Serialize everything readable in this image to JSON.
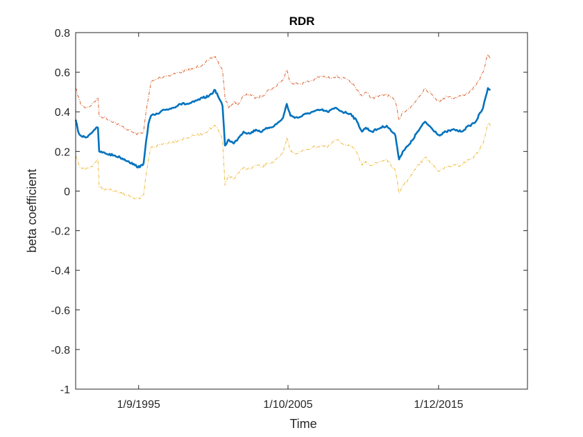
{
  "chart_data": {
    "type": "line",
    "title": "RDR",
    "xlabel": "Time",
    "ylabel": "beta coefficient",
    "ylim": [
      -1,
      0.8
    ],
    "xlim": [
      "1991-06-01",
      "2021-12-01"
    ],
    "y_ticks": [
      "0.8",
      "0.6",
      "0.4",
      "0.2",
      "0",
      "-0.2",
      "-0.4",
      "-0.6",
      "-0.8",
      "-1"
    ],
    "x_ticks": [
      {
        "date": "1995-09-01",
        "label": "1/9/1995"
      },
      {
        "date": "2005-10-01",
        "label": "1/10/2005"
      },
      {
        "date": "2015-12-01",
        "label": "1/12/2015"
      }
    ],
    "grid": false,
    "legend": "none",
    "series": [
      {
        "role": "upper",
        "color": "#D95319",
        "style": "dash-dot",
        "points": [
          [
            "1991-06-01",
            0.52
          ],
          [
            "1991-10-01",
            0.44
          ],
          [
            "1992-02-01",
            0.42
          ],
          [
            "1992-06-01",
            0.43
          ],
          [
            "1992-09-01",
            0.45
          ],
          [
            "1992-12-01",
            0.47
          ],
          [
            "1993-01-01",
            0.38
          ],
          [
            "1993-06-01",
            0.37
          ],
          [
            "1994-01-01",
            0.35
          ],
          [
            "1994-06-01",
            0.33
          ],
          [
            "1995-01-01",
            0.31
          ],
          [
            "1995-06-01",
            0.29
          ],
          [
            "1995-10-01",
            0.29
          ],
          [
            "1996-01-01",
            0.3
          ],
          [
            "1996-03-01",
            0.4
          ],
          [
            "1996-05-01",
            0.47
          ],
          [
            "1996-07-01",
            0.55
          ],
          [
            "1997-01-01",
            0.57
          ],
          [
            "1997-06-01",
            0.58
          ],
          [
            "1998-01-01",
            0.59
          ],
          [
            "1998-06-01",
            0.6
          ],
          [
            "1999-01-01",
            0.61
          ],
          [
            "1999-06-01",
            0.62
          ],
          [
            "2000-01-01",
            0.64
          ],
          [
            "2000-06-01",
            0.66
          ],
          [
            "2000-11-01",
            0.68
          ],
          [
            "2001-02-01",
            0.64
          ],
          [
            "2001-05-01",
            0.61
          ],
          [
            "2001-07-01",
            0.47
          ],
          [
            "2001-10-01",
            0.42
          ],
          [
            "2002-02-01",
            0.45
          ],
          [
            "2002-06-01",
            0.44
          ],
          [
            "2002-10-01",
            0.48
          ],
          [
            "2003-03-01",
            0.49
          ],
          [
            "2003-08-01",
            0.47
          ],
          [
            "2004-01-01",
            0.48
          ],
          [
            "2004-06-01",
            0.51
          ],
          [
            "2004-11-01",
            0.52
          ],
          [
            "2005-03-01",
            0.55
          ],
          [
            "2005-06-01",
            0.56
          ],
          [
            "2005-09-01",
            0.61
          ],
          [
            "2005-12-01",
            0.55
          ],
          [
            "2006-06-01",
            0.54
          ],
          [
            "2007-01-01",
            0.55
          ],
          [
            "2007-06-01",
            0.56
          ],
          [
            "2008-01-01",
            0.58
          ],
          [
            "2008-06-01",
            0.57
          ],
          [
            "2009-01-01",
            0.58
          ],
          [
            "2009-06-01",
            0.57
          ],
          [
            "2010-01-01",
            0.55
          ],
          [
            "2010-06-01",
            0.51
          ],
          [
            "2010-10-01",
            0.48
          ],
          [
            "2011-01-01",
            0.5
          ],
          [
            "2011-06-01",
            0.47
          ],
          [
            "2012-01-01",
            0.48
          ],
          [
            "2012-06-01",
            0.49
          ],
          [
            "2013-01-01",
            0.45
          ],
          [
            "2013-04-01",
            0.36
          ],
          [
            "2013-07-01",
            0.4
          ],
          [
            "2014-01-01",
            0.42
          ],
          [
            "2014-06-01",
            0.46
          ],
          [
            "2015-01-01",
            0.52
          ],
          [
            "2015-06-01",
            0.49
          ],
          [
            "2016-01-01",
            0.45
          ],
          [
            "2016-06-01",
            0.48
          ],
          [
            "2017-01-01",
            0.47
          ],
          [
            "2017-06-01",
            0.48
          ],
          [
            "2018-01-01",
            0.5
          ],
          [
            "2018-06-01",
            0.53
          ],
          [
            "2018-12-01",
            0.6
          ],
          [
            "2019-04-01",
            0.69
          ],
          [
            "2019-06-01",
            0.67
          ]
        ]
      },
      {
        "role": "estimate",
        "color": "#0072BD",
        "style": "solid",
        "points": [
          [
            "1991-06-01",
            0.36
          ],
          [
            "1991-08-01",
            0.3
          ],
          [
            "1991-10-01",
            0.28
          ],
          [
            "1992-02-01",
            0.27
          ],
          [
            "1992-06-01",
            0.29
          ],
          [
            "1992-09-01",
            0.31
          ],
          [
            "1992-12-01",
            0.32
          ],
          [
            "1993-01-01",
            0.2
          ],
          [
            "1993-06-01",
            0.19
          ],
          [
            "1994-01-01",
            0.18
          ],
          [
            "1994-06-01",
            0.17
          ],
          [
            "1995-01-01",
            0.15
          ],
          [
            "1995-06-01",
            0.13
          ],
          [
            "1995-10-01",
            0.12
          ],
          [
            "1996-01-01",
            0.14
          ],
          [
            "1996-03-01",
            0.25
          ],
          [
            "1996-05-01",
            0.34
          ],
          [
            "1996-07-01",
            0.38
          ],
          [
            "1997-01-01",
            0.39
          ],
          [
            "1997-06-01",
            0.41
          ],
          [
            "1998-01-01",
            0.42
          ],
          [
            "1998-06-01",
            0.44
          ],
          [
            "1999-01-01",
            0.44
          ],
          [
            "1999-06-01",
            0.45
          ],
          [
            "2000-01-01",
            0.47
          ],
          [
            "2000-06-01",
            0.48
          ],
          [
            "2000-11-01",
            0.51
          ],
          [
            "2001-02-01",
            0.47
          ],
          [
            "2001-05-01",
            0.43
          ],
          [
            "2001-07-01",
            0.23
          ],
          [
            "2001-10-01",
            0.26
          ],
          [
            "2002-02-01",
            0.24
          ],
          [
            "2002-06-01",
            0.27
          ],
          [
            "2002-10-01",
            0.3
          ],
          [
            "2003-03-01",
            0.29
          ],
          [
            "2003-08-01",
            0.31
          ],
          [
            "2004-01-01",
            0.3
          ],
          [
            "2004-06-01",
            0.32
          ],
          [
            "2004-11-01",
            0.33
          ],
          [
            "2005-03-01",
            0.35
          ],
          [
            "2005-06-01",
            0.37
          ],
          [
            "2005-09-01",
            0.44
          ],
          [
            "2005-12-01",
            0.38
          ],
          [
            "2006-06-01",
            0.37
          ],
          [
            "2007-01-01",
            0.39
          ],
          [
            "2007-06-01",
            0.4
          ],
          [
            "2008-01-01",
            0.41
          ],
          [
            "2008-06-01",
            0.4
          ],
          [
            "2009-01-01",
            0.42
          ],
          [
            "2009-06-01",
            0.4
          ],
          [
            "2010-01-01",
            0.39
          ],
          [
            "2010-06-01",
            0.35
          ],
          [
            "2010-10-01",
            0.3
          ],
          [
            "2011-01-01",
            0.32
          ],
          [
            "2011-06-01",
            0.3
          ],
          [
            "2012-01-01",
            0.32
          ],
          [
            "2012-06-01",
            0.33
          ],
          [
            "2013-01-01",
            0.28
          ],
          [
            "2013-04-01",
            0.16
          ],
          [
            "2013-07-01",
            0.2
          ],
          [
            "2014-01-01",
            0.24
          ],
          [
            "2014-06-01",
            0.29
          ],
          [
            "2015-01-01",
            0.35
          ],
          [
            "2015-06-01",
            0.32
          ],
          [
            "2016-01-01",
            0.28
          ],
          [
            "2016-06-01",
            0.3
          ],
          [
            "2017-01-01",
            0.31
          ],
          [
            "2017-06-01",
            0.3
          ],
          [
            "2018-01-01",
            0.33
          ],
          [
            "2018-06-01",
            0.35
          ],
          [
            "2018-12-01",
            0.42
          ],
          [
            "2019-04-01",
            0.52
          ],
          [
            "2019-06-01",
            0.51
          ]
        ]
      },
      {
        "role": "lower",
        "color": "#EDB120",
        "style": "dash-dot",
        "points": [
          [
            "1991-06-01",
            0.18
          ],
          [
            "1991-10-01",
            0.12
          ],
          [
            "1992-02-01",
            0.11
          ],
          [
            "1992-06-01",
            0.12
          ],
          [
            "1992-09-01",
            0.14
          ],
          [
            "1992-12-01",
            0.16
          ],
          [
            "1993-01-01",
            0.02
          ],
          [
            "1993-06-01",
            0.01
          ],
          [
            "1994-01-01",
            0.0
          ],
          [
            "1994-06-01",
            -0.01
          ],
          [
            "1995-01-01",
            -0.02
          ],
          [
            "1995-06-01",
            -0.04
          ],
          [
            "1995-10-01",
            -0.04
          ],
          [
            "1996-01-01",
            -0.02
          ],
          [
            "1996-03-01",
            0.08
          ],
          [
            "1996-05-01",
            0.16
          ],
          [
            "1996-07-01",
            0.22
          ],
          [
            "1997-01-01",
            0.23
          ],
          [
            "1997-06-01",
            0.24
          ],
          [
            "1998-01-01",
            0.25
          ],
          [
            "1998-06-01",
            0.26
          ],
          [
            "1999-01-01",
            0.27
          ],
          [
            "1999-06-01",
            0.28
          ],
          [
            "2000-01-01",
            0.29
          ],
          [
            "2000-06-01",
            0.31
          ],
          [
            "2000-11-01",
            0.33
          ],
          [
            "2001-02-01",
            0.3
          ],
          [
            "2001-05-01",
            0.26
          ],
          [
            "2001-07-01",
            0.03
          ],
          [
            "2001-10-01",
            0.08
          ],
          [
            "2002-02-01",
            0.06
          ],
          [
            "2002-06-01",
            0.09
          ],
          [
            "2002-10-01",
            0.12
          ],
          [
            "2003-03-01",
            0.11
          ],
          [
            "2003-08-01",
            0.13
          ],
          [
            "2004-01-01",
            0.12
          ],
          [
            "2004-06-01",
            0.14
          ],
          [
            "2004-11-01",
            0.15
          ],
          [
            "2005-03-01",
            0.17
          ],
          [
            "2005-06-01",
            0.19
          ],
          [
            "2005-09-01",
            0.27
          ],
          [
            "2005-12-01",
            0.2
          ],
          [
            "2006-06-01",
            0.19
          ],
          [
            "2007-01-01",
            0.21
          ],
          [
            "2007-06-01",
            0.22
          ],
          [
            "2008-01-01",
            0.23
          ],
          [
            "2008-06-01",
            0.22
          ],
          [
            "2009-01-01",
            0.26
          ],
          [
            "2009-06-01",
            0.24
          ],
          [
            "2010-01-01",
            0.23
          ],
          [
            "2010-06-01",
            0.19
          ],
          [
            "2010-10-01",
            0.13
          ],
          [
            "2011-01-01",
            0.15
          ],
          [
            "2011-06-01",
            0.13
          ],
          [
            "2012-01-01",
            0.15
          ],
          [
            "2012-06-01",
            0.16
          ],
          [
            "2013-01-01",
            0.1
          ],
          [
            "2013-04-01",
            -0.01
          ],
          [
            "2013-07-01",
            0.03
          ],
          [
            "2014-01-01",
            0.07
          ],
          [
            "2014-06-01",
            0.12
          ],
          [
            "2015-01-01",
            0.17
          ],
          [
            "2015-06-01",
            0.14
          ],
          [
            "2016-01-01",
            0.1
          ],
          [
            "2016-06-01",
            0.12
          ],
          [
            "2017-01-01",
            0.13
          ],
          [
            "2017-06-01",
            0.13
          ],
          [
            "2018-01-01",
            0.16
          ],
          [
            "2018-06-01",
            0.18
          ],
          [
            "2018-12-01",
            0.24
          ],
          [
            "2019-04-01",
            0.34
          ],
          [
            "2019-06-01",
            0.33
          ]
        ]
      }
    ]
  }
}
